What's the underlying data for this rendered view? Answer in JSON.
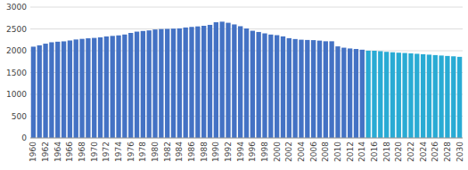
{
  "chart_data": {
    "type": "bar",
    "categories": [
      "1960",
      null,
      "1962",
      null,
      "1964",
      null,
      "1966",
      null,
      "1968",
      null,
      "1970",
      null,
      "1972",
      null,
      "1974",
      null,
      "1976",
      null,
      "1978",
      null,
      "1980",
      null,
      "1982",
      null,
      "1984",
      null,
      "1986",
      null,
      "1988",
      null,
      "1990",
      null,
      "1992",
      null,
      "1994",
      null,
      "1996",
      null,
      "1998",
      null,
      "2000",
      null,
      "2002",
      null,
      "2004",
      null,
      "2006",
      null,
      "2008",
      null,
      "2010",
      null,
      "2012",
      null,
      "2014",
      null,
      "2016",
      null,
      "2018",
      null,
      "2020",
      null,
      "2022",
      null,
      "2024",
      null,
      "2026",
      null,
      "2028",
      null,
      "2030"
    ],
    "values": [
      2093,
      2124,
      2162,
      2194,
      2207,
      2215,
      2235,
      2258,
      2272,
      2285,
      2294,
      2307,
      2328,
      2340,
      2352,
      2372,
      2408,
      2438,
      2453,
      2466,
      2487,
      2497,
      2501,
      2507,
      2513,
      2533,
      2546,
      2558,
      2572,
      2593,
      2653,
      2666,
      2641,
      2603,
      2562,
      2511,
      2458,
      2430,
      2398,
      2371,
      2357,
      2329,
      2288,
      2268,
      2253,
      2247,
      2243,
      2232,
      2217,
      2217,
      2100,
      2070,
      2052,
      2040,
      2024,
      2001,
      2000,
      1990,
      1975,
      1965,
      1955,
      1948,
      1940,
      1930,
      1920,
      1910,
      1900,
      1890,
      1880,
      1872,
      1860
    ],
    "colors": [
      "#4472C4",
      "#4472C4",
      "#4472C4",
      "#4472C4",
      "#4472C4",
      "#4472C4",
      "#4472C4",
      "#4472C4",
      "#4472C4",
      "#4472C4",
      "#4472C4",
      "#4472C4",
      "#4472C4",
      "#4472C4",
      "#4472C4",
      "#4472C4",
      "#4472C4",
      "#4472C4",
      "#4472C4",
      "#4472C4",
      "#4472C4",
      "#4472C4",
      "#4472C4",
      "#4472C4",
      "#4472C4",
      "#4472C4",
      "#4472C4",
      "#4472C4",
      "#4472C4",
      "#4472C4",
      "#4472C4",
      "#4472C4",
      "#4472C4",
      "#4472C4",
      "#4472C4",
      "#4472C4",
      "#4472C4",
      "#4472C4",
      "#4472C4",
      "#4472C4",
      "#4472C4",
      "#4472C4",
      "#4472C4",
      "#4472C4",
      "#4472C4",
      "#4472C4",
      "#4472C4",
      "#4472C4",
      "#4472C4",
      "#4472C4",
      "#4472C4",
      "#4472C4",
      "#4472C4",
      "#4472C4",
      "#4472C4",
      "#29ABD4",
      "#29ABD4",
      "#29ABD4",
      "#29ABD4",
      "#29ABD4",
      "#29ABD4",
      "#29ABD4",
      "#29ABD4",
      "#29ABD4",
      "#29ABD4",
      "#29ABD4",
      "#29ABD4",
      "#29ABD4",
      "#29ABD4",
      "#29ABD4",
      "#29ABD4"
    ],
    "ylim": [
      0,
      3000
    ],
    "yticks": [
      0,
      500,
      1000,
      1500,
      2000,
      2500,
      3000
    ],
    "grid": true
  }
}
